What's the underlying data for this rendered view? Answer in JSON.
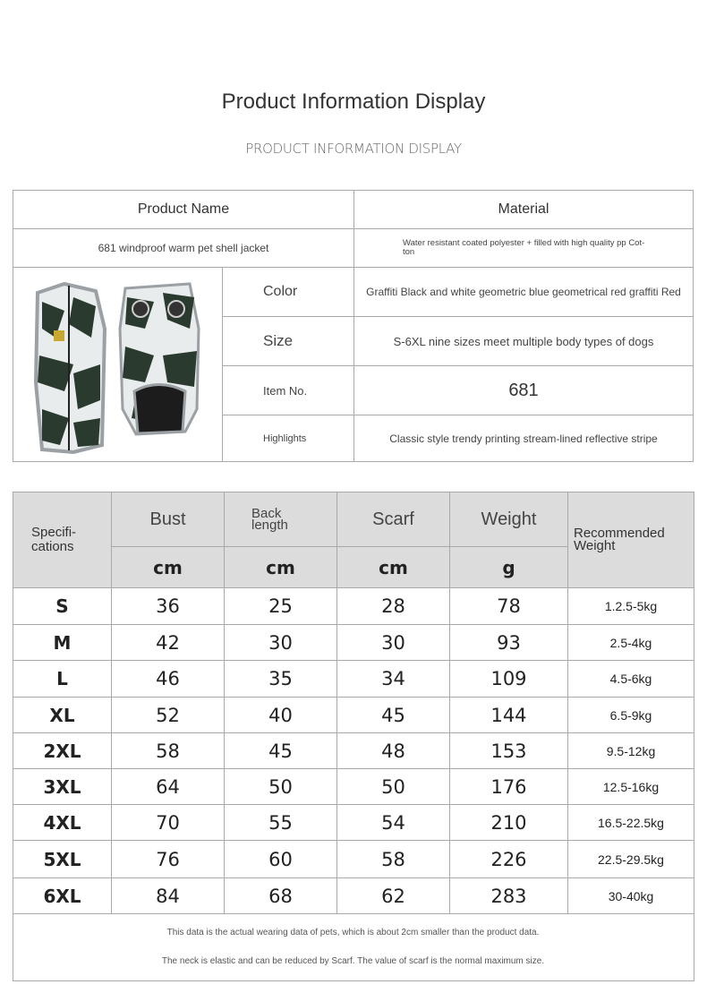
{
  "header": {
    "title": "Product Information Display",
    "subtitle": "PRODUCT INFORMATION DISPLAY"
  },
  "info": {
    "product_name_label": "Product Name",
    "material_label": "Material",
    "product_name": "681 windproof warm pet shell jacket",
    "material": "Water resistant coated polyester + filled with high quality pp Cot-ton",
    "rows": [
      {
        "label": "Color",
        "value": "Graffiti Black and white geometric blue geometrical red graffiti Red"
      },
      {
        "label": "Size",
        "value": "S-6XL nine sizes meet multiple body types of dogs"
      },
      {
        "label": "Item No.",
        "value": "681"
      },
      {
        "label": "Highlights",
        "value": "Classic style trendy printing stream-lined reflective stripe"
      }
    ],
    "image_colors": {
      "camo_dark": "#2b3a2e",
      "camo_light": "#e8ecec",
      "reflective": "#9aa0a4"
    }
  },
  "sizes": {
    "headers": [
      "Specifi-cations",
      "Bust",
      "Back length",
      "Scarf",
      "Weight",
      "Recommended Weight"
    ],
    "units": [
      "cm",
      "cm",
      "cm",
      "g"
    ],
    "rows": [
      [
        "S",
        "36",
        "25",
        "28",
        "78",
        "1.2.5-5kg"
      ],
      [
        "M",
        "42",
        "30",
        "30",
        "93",
        "2.5-4kg"
      ],
      [
        "L",
        "46",
        "35",
        "34",
        "109",
        "4.5-6kg"
      ],
      [
        "XL",
        "52",
        "40",
        "45",
        "144",
        "6.5-9kg"
      ],
      [
        "2XL",
        "58",
        "45",
        "48",
        "153",
        "9.5-12kg"
      ],
      [
        "3XL",
        "64",
        "50",
        "50",
        "176",
        "12.5-16kg"
      ],
      [
        "4XL",
        "70",
        "55",
        "54",
        "210",
        "16.5-22.5kg"
      ],
      [
        "5XL",
        "76",
        "60",
        "58",
        "226",
        "22.5-29.5kg"
      ],
      [
        "6XL",
        "84",
        "68",
        "62",
        "283",
        "30-40kg"
      ]
    ],
    "notes": [
      "This data is the actual wearing data of pets, which is about 2cm smaller than the product data.",
      "The neck is elastic and can be reduced by Scarf. The value of scarf is the normal maximum size."
    ]
  }
}
